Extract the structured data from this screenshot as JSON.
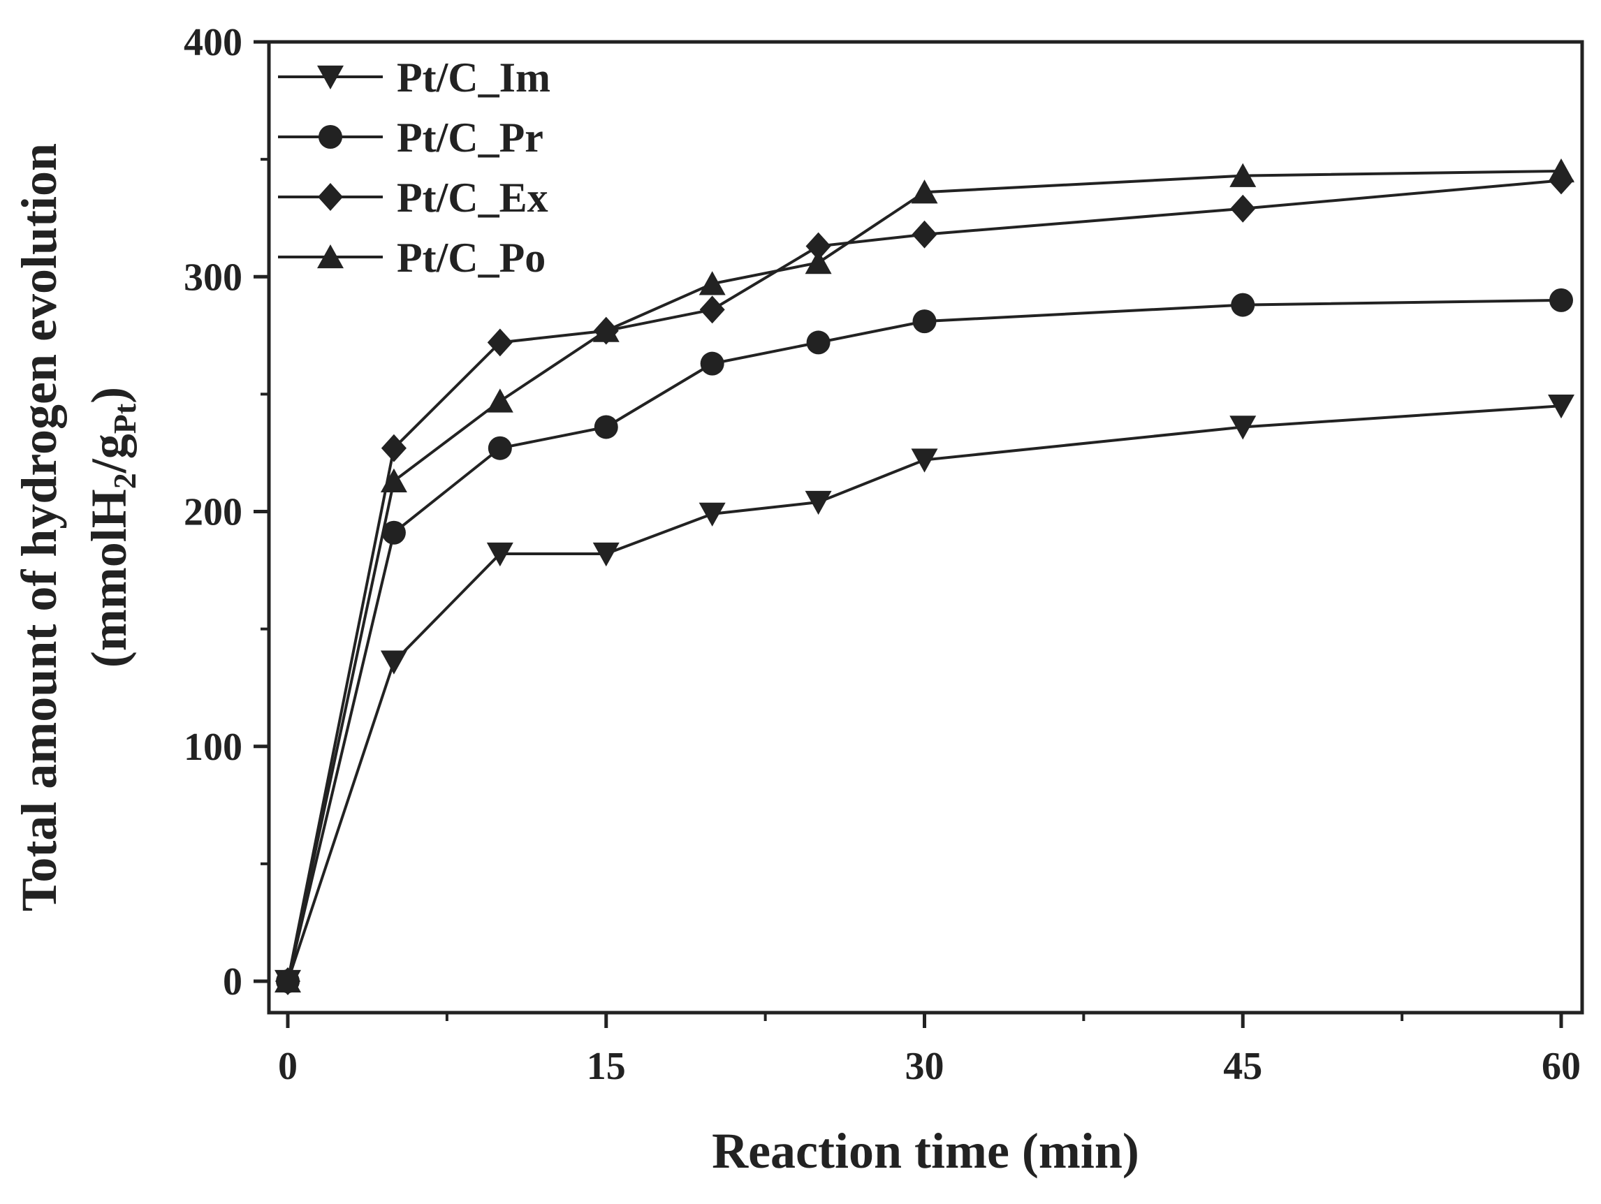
{
  "chart_data": {
    "type": "line",
    "xlabel": "Reaction time (min)",
    "ylabel_line1": "Total amount  of hydrogen evolution",
    "ylabel_line2_prefix": "(mmolH",
    "ylabel_line2_sub1": "2",
    "ylabel_line2_mid": "/g",
    "ylabel_line2_sub2": "Pt",
    "ylabel_line2_suffix": ")",
    "xlim": [
      0,
      60
    ],
    "ylim": [
      0,
      400
    ],
    "xticks": [
      "0",
      "15",
      "30",
      "45",
      "60"
    ],
    "yticks": [
      "0",
      "100",
      "200",
      "300",
      "400"
    ],
    "legend_position": "top-left",
    "grid": false,
    "x": [
      0,
      5,
      10,
      15,
      20,
      25,
      30,
      45,
      60
    ],
    "series": [
      {
        "name": "Pt/C_Im",
        "marker": "triangle-down",
        "values": [
          0,
          136,
          182,
          182,
          199,
          204,
          222,
          236,
          245
        ]
      },
      {
        "name": "Pt/C_Pr",
        "marker": "circle",
        "values": [
          0,
          191,
          227,
          236,
          263,
          272,
          281,
          288,
          290
        ]
      },
      {
        "name": "Pt/C_Ex",
        "marker": "diamond",
        "values": [
          0,
          227,
          272,
          277,
          286,
          313,
          318,
          329,
          341
        ]
      },
      {
        "name": "Pt/C_Po",
        "marker": "triangle-up",
        "values": [
          0,
          213,
          247,
          277,
          297,
          306,
          336,
          343,
          345
        ]
      }
    ],
    "colors": {
      "line": "#222222",
      "marker": "#222222"
    }
  }
}
